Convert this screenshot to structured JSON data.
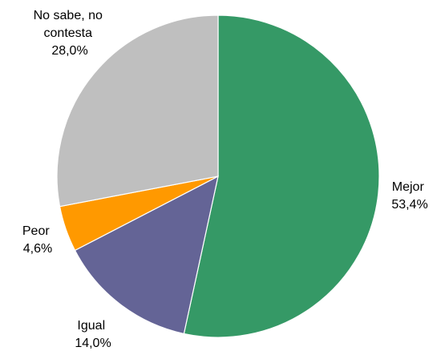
{
  "chart_data": {
    "type": "pie",
    "title": "",
    "start_angle_deg": 0,
    "direction": "clockwise",
    "legend": "none",
    "slices": [
      {
        "label": "Mejor",
        "value": 53.4,
        "value_text": "53,4%",
        "color": "#359966"
      },
      {
        "label": "Igual",
        "value": 14.0,
        "value_text": "14,0%",
        "color": "#646496"
      },
      {
        "label": "Peor",
        "value": 4.6,
        "value_text": "4,6%",
        "color": "#FF9900"
      },
      {
        "label_lines": [
          "No sabe, no",
          "contesta"
        ],
        "value": 28.0,
        "value_text": "28,0%",
        "color": "#BFBFBF"
      }
    ]
  }
}
